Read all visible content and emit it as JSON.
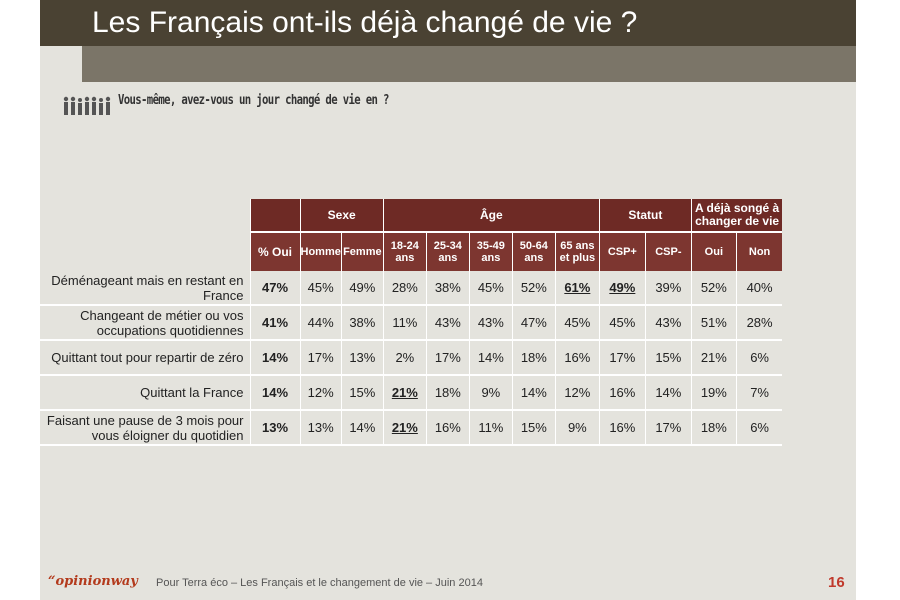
{
  "title": "Les Français ont-ils déjà changé de vie ?",
  "question": "Vous-même, avez-vous un jour changé de vie en ?",
  "icon": "people-silhouettes-icon",
  "colors": {
    "header_dark": "#6e2a25",
    "header": "#7d3630",
    "slide_bg": "#e4e3dd",
    "title_bar": "#4a4233"
  },
  "table": {
    "groups": [
      "Sexe",
      "Âge",
      "Statut",
      "A déjà songé à changer de vie"
    ],
    "columns": [
      "% Oui",
      "Homme",
      "Femme",
      "18-24 ans",
      "25-34 ans",
      "35-49 ans",
      "50-64 ans",
      "65 ans et plus",
      "CSP+",
      "CSP-",
      "Oui",
      "Non"
    ],
    "rows": [
      {
        "label": "Déménageant mais en restant en France",
        "values": [
          "47%",
          "45%",
          "49%",
          "28%",
          "38%",
          "45%",
          "52%",
          "61%",
          "49%",
          "39%",
          "52%",
          "40%"
        ]
      },
      {
        "label": "Changeant de métier ou vos occupations quotidiennes",
        "values": [
          "41%",
          "44%",
          "38%",
          "11%",
          "43%",
          "43%",
          "47%",
          "45%",
          "45%",
          "43%",
          "51%",
          "28%"
        ]
      },
      {
        "label": "Quittant tout pour repartir de zéro",
        "values": [
          "14%",
          "17%",
          "13%",
          "2%",
          "17%",
          "14%",
          "18%",
          "16%",
          "17%",
          "15%",
          "21%",
          "6%"
        ]
      },
      {
        "label": "Quittant la France",
        "values": [
          "14%",
          "12%",
          "15%",
          "21%",
          "18%",
          "9%",
          "14%",
          "12%",
          "16%",
          "14%",
          "19%",
          "7%"
        ]
      },
      {
        "label": "Faisant une pause de 3 mois pour vous éloigner du quotidien",
        "values": [
          "13%",
          "13%",
          "14%",
          "21%",
          "16%",
          "11%",
          "15%",
          "9%",
          "16%",
          "17%",
          "18%",
          "6%"
        ]
      }
    ]
  },
  "footer": {
    "logo": "“opinionway",
    "text": "Pour Terra éco – Les Français et le changement de vie – Juin 2014",
    "page": "16"
  }
}
